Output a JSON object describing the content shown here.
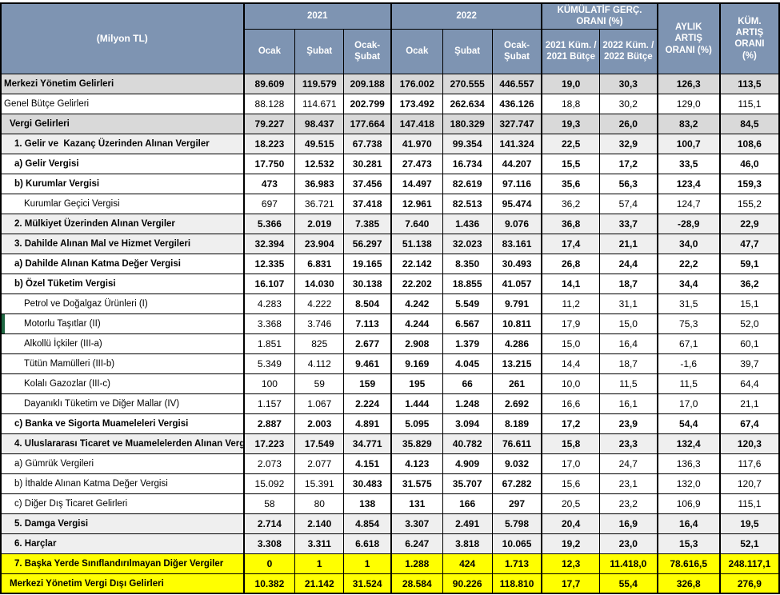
{
  "header": {
    "unit_label": "(Milyon TL)",
    "y2021": "2021",
    "y2022": "2022",
    "ocak": "Ocak",
    "subat": "Şubat",
    "ocak_subat": "Ocak-Şubat",
    "kumulatif": "KÜMÜLATİF GERÇ. ORANI (%)",
    "kum2021": "2021 Küm. / 2021 Bütçe",
    "kum2022": "2022 Küm. / 2022 Bütçe",
    "aylik": "AYLIK ARTIŞ ORANI (%)",
    "kum_artis": "KÜM. ARTIŞ ORANI (%)"
  },
  "colors": {
    "header_bg": "#7E94B2",
    "header_text": "#FFFFFF",
    "row_gray": "#D9D9D9",
    "row_light_gray": "#EFEFEF",
    "highlight_yellow": "#FFFF00",
    "marker_green": "#1E6641",
    "border": "#000000"
  },
  "rows": [
    {
      "label": "Merkezi Yönetim Gelirleri",
      "indent": 0,
      "style": "dark",
      "bl": 1,
      "bm": 1,
      "bp": 1,
      "ly": 1,
      "green": 0,
      "values": [
        "89.609",
        "119.579",
        "209.188",
        "176.002",
        "270.555",
        "446.557",
        "19,0",
        "30,3",
        "126,3",
        "113,5"
      ]
    },
    {
      "label": "Genel Bütçe Gelirleri",
      "indent": 0,
      "style": "white",
      "bl": 0,
      "bm": 0,
      "bp": 0,
      "ly": 0,
      "green": 0,
      "values": [
        "88.128",
        "114.671",
        "202.799",
        "173.492",
        "262.634",
        "436.126",
        "18,8",
        "30,2",
        "129,0",
        "115,1"
      ]
    },
    {
      "label": "Vergi Gelirleri",
      "indent": 1,
      "style": "dark",
      "bl": 1,
      "bm": 1,
      "bp": 1,
      "ly": 0,
      "green": 0,
      "values": [
        "79.227",
        "98.437",
        "177.664",
        "147.418",
        "180.329",
        "327.747",
        "19,3",
        "26,0",
        "83,2",
        "84,5"
      ]
    },
    {
      "label": "1. Gelir ve  Kazanç Üzerinden Alınan Vergiler",
      "indent": 2,
      "style": "light",
      "bl": 1,
      "bm": 1,
      "bp": 1,
      "ly": 1,
      "green": 0,
      "values": [
        "18.223",
        "49.515",
        "67.738",
        "41.970",
        "99.354",
        "141.324",
        "22,5",
        "32,9",
        "100,7",
        "108,6"
      ]
    },
    {
      "label": "a) Gelir Vergisi",
      "indent": 2,
      "style": "white",
      "bl": 1,
      "bm": 1,
      "bp": 1,
      "ly": 0,
      "green": 0,
      "values": [
        "17.750",
        "12.532",
        "30.281",
        "27.473",
        "16.734",
        "44.207",
        "15,5",
        "17,2",
        "33,5",
        "46,0"
      ]
    },
    {
      "label": "b) Kurumlar Vergisi",
      "indent": 2,
      "style": "white",
      "bl": 1,
      "bm": 1,
      "bp": 1,
      "ly": 1,
      "green": 0,
      "values": [
        "473",
        "36.983",
        "37.456",
        "14.497",
        "82.619",
        "97.116",
        "35,6",
        "56,3",
        "123,4",
        "159,3"
      ]
    },
    {
      "label": "Kurumlar Geçici Vergisi",
      "indent": 3,
      "style": "white",
      "bl": 0,
      "bm": 0,
      "bp": 0,
      "ly": 0,
      "green": 0,
      "values": [
        "697",
        "36.721",
        "37.418",
        "12.961",
        "82.513",
        "95.474",
        "36,2",
        "57,4",
        "124,7",
        "155,2"
      ]
    },
    {
      "label": "2. Mülkiyet Üzerinden Alınan Vergiler",
      "indent": 2,
      "style": "light",
      "bl": 1,
      "bm": 1,
      "bp": 1,
      "ly": 0,
      "green": 0,
      "values": [
        "5.366",
        "2.019",
        "7.385",
        "7.640",
        "1.436",
        "9.076",
        "36,8",
        "33,7",
        "-28,9",
        "22,9"
      ]
    },
    {
      "label": "3. Dahilde Alınan Mal ve Hizmet Vergileri",
      "indent": 2,
      "style": "light",
      "bl": 1,
      "bm": 1,
      "bp": 1,
      "ly": 0,
      "green": 0,
      "values": [
        "32.394",
        "23.904",
        "56.297",
        "51.138",
        "32.023",
        "83.161",
        "17,4",
        "21,1",
        "34,0",
        "47,7"
      ]
    },
    {
      "label": "a) Dahilde Alınan Katma Değer Vergisi",
      "indent": 2,
      "style": "white",
      "bl": 1,
      "bm": 1,
      "bp": 1,
      "ly": 0,
      "green": 0,
      "values": [
        "12.335",
        "6.831",
        "19.165",
        "22.142",
        "8.350",
        "30.493",
        "26,8",
        "24,4",
        "22,2",
        "59,1"
      ]
    },
    {
      "label": "b) Özel Tüketim Vergisi",
      "indent": 2,
      "style": "white",
      "bl": 1,
      "bm": 1,
      "bp": 1,
      "ly": 0,
      "green": 0,
      "values": [
        "16.107",
        "14.030",
        "30.138",
        "22.202",
        "18.855",
        "41.057",
        "14,1",
        "18,7",
        "34,4",
        "36,2"
      ]
    },
    {
      "label": "Petrol ve Doğalgaz Ürünleri (I)",
      "indent": 3,
      "style": "white",
      "bl": 0,
      "bm": 0,
      "bp": 0,
      "ly": 0,
      "green": 0,
      "values": [
        "4.283",
        "4.222",
        "8.504",
        "4.242",
        "5.549",
        "9.791",
        "11,2",
        "31,1",
        "31,5",
        "15,1"
      ]
    },
    {
      "label": "Motorlu Taşıtlar (II)",
      "indent": 3,
      "style": "white",
      "bl": 0,
      "bm": 0,
      "bp": 0,
      "ly": 0,
      "green": 1,
      "values": [
        "3.368",
        "3.746",
        "7.113",
        "4.244",
        "6.567",
        "10.811",
        "17,9",
        "15,0",
        "75,3",
        "52,0"
      ]
    },
    {
      "label": "Alkollü İçkiler (III-a)",
      "indent": 3,
      "style": "white",
      "bl": 0,
      "bm": 0,
      "bp": 0,
      "ly": 1,
      "green": 0,
      "values": [
        "1.851",
        "825",
        "2.677",
        "2.908",
        "1.379",
        "4.286",
        "15,0",
        "16,4",
        "67,1",
        "60,1"
      ]
    },
    {
      "label": "Tütün Mamülleri (III-b)",
      "indent": 3,
      "style": "white",
      "bl": 0,
      "bm": 0,
      "bp": 0,
      "ly": 0,
      "green": 0,
      "values": [
        "5.349",
        "4.112",
        "9.461",
        "9.169",
        "4.045",
        "13.215",
        "14,4",
        "18,7",
        "-1,6",
        "39,7"
      ]
    },
    {
      "label": "Kolalı Gazozlar (III-c)",
      "indent": 3,
      "style": "white",
      "bl": 0,
      "bm": 0,
      "bp": 0,
      "ly": 1,
      "green": 0,
      "values": [
        "100",
        "59",
        "159",
        "195",
        "66",
        "261",
        "10,0",
        "11,5",
        "11,5",
        "64,4"
      ]
    },
    {
      "label": "Dayanıklı Tüketim ve Diğer Mallar (IV)",
      "indent": 3,
      "style": "white",
      "bl": 0,
      "bm": 0,
      "bp": 0,
      "ly": 0,
      "green": 0,
      "values": [
        "1.157",
        "1.067",
        "2.224",
        "1.444",
        "1.248",
        "2.692",
        "16,6",
        "16,1",
        "17,0",
        "21,1"
      ]
    },
    {
      "label": "c) Banka ve Sigorta Muameleleri Vergisi",
      "indent": 2,
      "style": "white",
      "bl": 1,
      "bm": 1,
      "bp": 1,
      "ly": 1,
      "green": 0,
      "values": [
        "2.887",
        "2.003",
        "4.891",
        "5.095",
        "3.094",
        "8.189",
        "17,2",
        "23,9",
        "54,4",
        "67,4"
      ]
    },
    {
      "label": "4. Uluslararası Ticaret ve Muamelelerden Alınan Verg",
      "indent": 2,
      "style": "light",
      "bl": 1,
      "bm": 1,
      "bp": 1,
      "ly": 1,
      "green": 0,
      "values": [
        "17.223",
        "17.549",
        "34.771",
        "35.829",
        "40.782",
        "76.611",
        "15,8",
        "23,3",
        "132,4",
        "120,3"
      ]
    },
    {
      "label": "a) Gümrük Vergileri",
      "indent": 2,
      "style": "white",
      "bl": 0,
      "bm": 0,
      "bp": 0,
      "ly": 0,
      "green": 0,
      "values": [
        "2.073",
        "2.077",
        "4.151",
        "4.123",
        "4.909",
        "9.032",
        "17,0",
        "24,7",
        "136,3",
        "117,6"
      ]
    },
    {
      "label": "b) İthalde Alınan Katma Değer Vergisi",
      "indent": 2,
      "style": "white",
      "bl": 0,
      "bm": 0,
      "bp": 0,
      "ly": 0,
      "green": 0,
      "values": [
        "15.092",
        "15.391",
        "30.483",
        "31.575",
        "35.707",
        "67.282",
        "15,6",
        "23,1",
        "132,0",
        "120,7"
      ]
    },
    {
      "label": "c) Diğer Dış Ticaret Gelirleri",
      "indent": 2,
      "style": "white",
      "bl": 0,
      "bm": 0,
      "bp": 0,
      "ly": 0,
      "green": 0,
      "values": [
        "58",
        "80",
        "138",
        "131",
        "166",
        "297",
        "20,5",
        "23,2",
        "106,9",
        "115,1"
      ]
    },
    {
      "label": "5. Damga Vergisi",
      "indent": 2,
      "style": "light",
      "bl": 1,
      "bm": 1,
      "bp": 1,
      "ly": 0,
      "green": 0,
      "values": [
        "2.714",
        "2.140",
        "4.854",
        "3.307",
        "2.491",
        "5.798",
        "20,4",
        "16,9",
        "16,4",
        "19,5"
      ]
    },
    {
      "label": "6. Harçlar",
      "indent": 2,
      "style": "light",
      "bl": 1,
      "bm": 1,
      "bp": 1,
      "ly": 0,
      "green": 0,
      "values": [
        "3.308",
        "3.311",
        "6.618",
        "6.247",
        "3.818",
        "10.065",
        "19,2",
        "23,0",
        "15,3",
        "52,1"
      ]
    },
    {
      "label": "7. Başka Yerde Sınıflandırılmayan Diğer Vergiler",
      "indent": 2,
      "style": "yellowrow",
      "bl": 1,
      "bm": 1,
      "bp": 1,
      "ly": 0,
      "green": 0,
      "values": [
        "0",
        "1",
        "1",
        "1.288",
        "424",
        "1.713",
        "12,3",
        "11.418,0",
        "78.616,5",
        "248.117,1"
      ]
    },
    {
      "label": "Merkezi Yönetim Vergi Dışı Gelirleri",
      "indent": 1,
      "style": "yellowrow",
      "bl": 1,
      "bm": 1,
      "bp": 1,
      "ly": 0,
      "green": 0,
      "values": [
        "10.382",
        "21.142",
        "31.524",
        "28.584",
        "90.226",
        "118.810",
        "17,7",
        "55,4",
        "326,8",
        "276,9"
      ]
    }
  ]
}
